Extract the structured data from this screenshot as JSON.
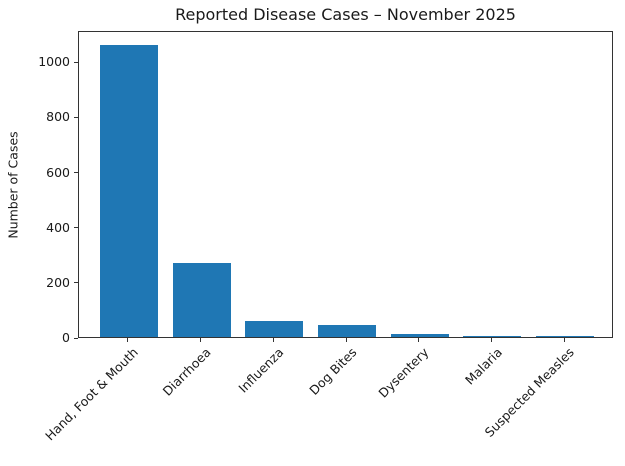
{
  "figure": {
    "background": "#ffffff",
    "spine_color": "#333333",
    "text_color": "#1a1a1a"
  },
  "chart_data": {
    "type": "bar",
    "title": "Reported Disease Cases – November 2025",
    "xlabel": "",
    "ylabel": "Number of Cases",
    "categories": [
      "Hand, Foot & Mouth",
      "Diarrhoea",
      "Influenza",
      "Dog Bites",
      "Dysentery",
      "Malaria",
      "Suspected Measles"
    ],
    "values": [
      1060,
      270,
      57,
      43,
      10,
      5,
      4
    ],
    "bar_color": "#1f77b4",
    "yticks": [
      0,
      200,
      400,
      600,
      800,
      1000
    ],
    "ylim": [
      0,
      1113
    ],
    "grid": false,
    "legend": false,
    "x_tick_rotation_deg": 45
  }
}
